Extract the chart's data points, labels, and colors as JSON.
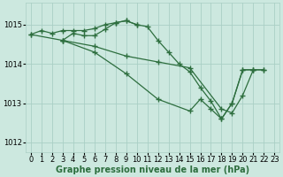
{
  "background_color": "#cce8df",
  "grid_color": "#aacfc5",
  "line_color": "#2d6e3e",
  "marker": "+",
  "markersize": 4,
  "linewidth": 0.9,
  "markeredgewidth": 1.0,
  "xlabel": "Graphe pression niveau de la mer (hPa)",
  "xlabel_fontsize": 7,
  "tick_fontsize": 6,
  "ylim": [
    1011.75,
    1015.55
  ],
  "yticks": [
    1012,
    1013,
    1014,
    1015
  ],
  "xlim": [
    -0.5,
    23.5
  ],
  "xticks": [
    0,
    1,
    2,
    3,
    4,
    5,
    6,
    7,
    8,
    9,
    10,
    11,
    12,
    13,
    14,
    15,
    16,
    17,
    18,
    19,
    20,
    21,
    22,
    23
  ],
  "series": [
    {
      "x": [
        0,
        1,
        2,
        3,
        4,
        5,
        6,
        7,
        8,
        9,
        10,
        11,
        12,
        13,
        14,
        15,
        16,
        17,
        18,
        19,
        20,
        21
      ],
      "y": [
        1014.75,
        1014.85,
        1014.78,
        1014.85,
        1014.85,
        1014.85,
        1014.9,
        1015.0,
        1015.05,
        1015.1,
        1015.0,
        1014.95,
        1014.6,
        1014.3,
        1014.0,
        1013.8,
        1013.4,
        1013.05,
        1012.6,
        1013.0,
        1013.85,
        1013.85
      ]
    },
    {
      "x": [
        0,
        3,
        4,
        5,
        6,
        7,
        8,
        9,
        10
      ],
      "y": [
        1014.75,
        1014.6,
        1014.78,
        1014.72,
        1014.72,
        1014.88,
        1015.05,
        1015.1,
        1015.0
      ]
    },
    {
      "x": [
        3,
        6,
        9,
        12,
        15,
        18,
        19,
        20,
        21,
        22
      ],
      "y": [
        1014.6,
        1014.45,
        1014.2,
        1014.05,
        1013.9,
        1012.85,
        1012.75,
        1013.2,
        1013.85,
        1013.85
      ]
    },
    {
      "x": [
        3,
        6,
        9,
        12,
        15,
        16,
        17,
        18,
        19,
        20,
        21,
        22
      ],
      "y": [
        1014.6,
        1014.3,
        1013.75,
        1013.1,
        1012.8,
        1013.1,
        1012.85,
        1012.6,
        1013.0,
        1013.85,
        1013.85,
        1013.85
      ]
    }
  ]
}
